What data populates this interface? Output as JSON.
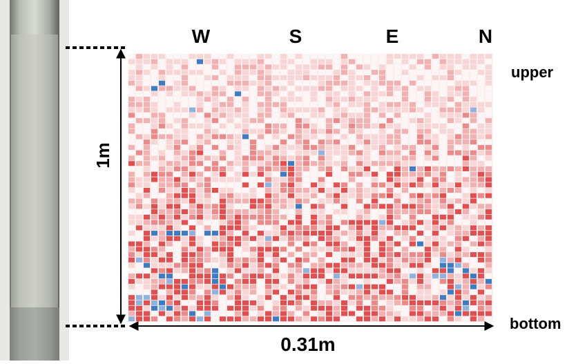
{
  "directions": [
    "W",
    "S",
    "E",
    "N"
  ],
  "side_labels": {
    "top": "upper",
    "bottom": "bottom"
  },
  "height_label": "1m",
  "width_label": "0.31m"
}
